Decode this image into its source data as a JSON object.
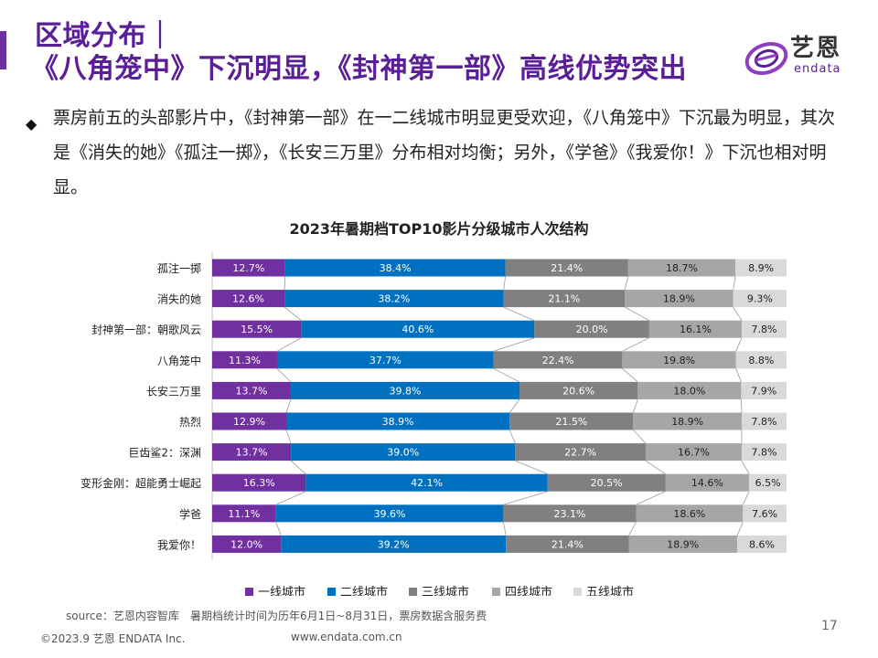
{
  "header": {
    "title_line1": "区域分布｜",
    "title_line2": "《八角笼中》下沉明显，《封神第一部》高线优势突出"
  },
  "logo": {
    "cn": "艺恩",
    "en": "endata"
  },
  "bullet": {
    "text": "票房前五的头部影片中，《封神第一部》在一二线城市明显更受欢迎，《八角笼中》下沉最为明显，其次是《消失的她》《孤注一掷》，《长安三万里》分布相对均衡；另外，《学爸》《我爱你！》下沉也相对明显。"
  },
  "colors": {
    "tier1": "#7030a0",
    "tier2": "#0070c0",
    "tier3": "#808080",
    "tier4": "#a6a6a6",
    "tier5": "#d9d9d9",
    "title": "#5a1e96"
  },
  "chart_data": {
    "type": "bar",
    "orientation": "horizontal-stacked-100",
    "title": "2023年暑期档TOP10影片分级城市人次结构",
    "categories": [
      "孤注一掷",
      "消失的她",
      "封神第一部：朝歌风云",
      "八角笼中",
      "长安三万里",
      "热烈",
      "巨齿鲨2：深渊",
      "变形金刚：超能勇士崛起",
      "学爸",
      "我爱你！"
    ],
    "series": [
      {
        "name": "一线城市",
        "values": [
          12.7,
          12.6,
          15.5,
          11.3,
          13.7,
          12.9,
          13.7,
          16.3,
          11.1,
          12.0
        ]
      },
      {
        "name": "二线城市",
        "values": [
          38.4,
          38.2,
          40.6,
          37.7,
          39.8,
          38.9,
          39.0,
          42.1,
          39.6,
          39.2
        ]
      },
      {
        "name": "三线城市",
        "values": [
          21.4,
          21.1,
          20.0,
          22.4,
          20.6,
          21.5,
          22.7,
          20.5,
          23.1,
          21.4
        ]
      },
      {
        "name": "四线城市",
        "values": [
          18.7,
          18.9,
          16.1,
          19.8,
          18.0,
          18.9,
          16.7,
          14.6,
          18.6,
          18.9
        ]
      },
      {
        "name": "五线城市",
        "values": [
          8.9,
          9.3,
          7.8,
          8.8,
          7.9,
          7.8,
          7.8,
          6.5,
          7.6,
          8.6
        ]
      }
    ],
    "unit": "%",
    "legend_position": "bottom"
  },
  "footer": {
    "source": "source：艺恩内容智库",
    "note": "暑期档统计时间为历年6月1日~8月31日，票房数据含服务费",
    "copyright": "©2023.9 艺恩 ENDATA Inc.",
    "website": "www.endata.com.cn",
    "page": "17"
  }
}
